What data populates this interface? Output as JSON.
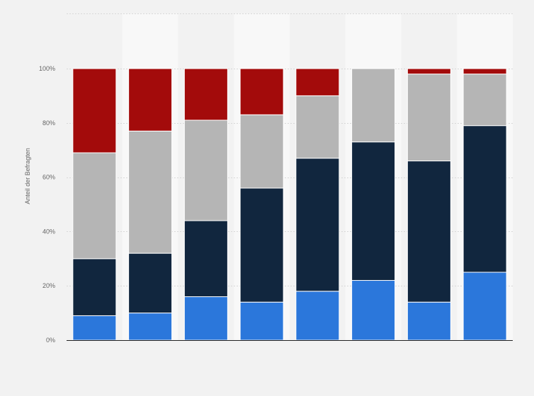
{
  "chart_data": {
    "type": "bar",
    "stacked": true,
    "categories": [
      "",
      "",
      "",
      "",
      "",
      "",
      "",
      ""
    ],
    "ylabel": "Anteil der Befragten",
    "ylim": [
      0,
      100
    ],
    "yticks": [
      0,
      20,
      40,
      60,
      80,
      100
    ],
    "ytick_labels": [
      "0%",
      "20%",
      "40%",
      "60%",
      "80%",
      "100%"
    ],
    "grid": true,
    "legend": "none",
    "series": [
      {
        "color": "#2b77db",
        "values": [
          9,
          10,
          16,
          14,
          18,
          22,
          14,
          25
        ]
      },
      {
        "color": "#11263e",
        "values": [
          21,
          22,
          28,
          42,
          49,
          51,
          52,
          54
        ]
      },
      {
        "color": "#b5b5b5",
        "values": [
          39,
          45,
          37,
          27,
          23,
          27,
          32,
          19
        ]
      },
      {
        "color": "#a30b0b",
        "values": [
          31,
          23,
          19,
          17,
          10,
          0,
          2,
          2
        ]
      }
    ]
  },
  "colors": {
    "background": "#f2f2f2",
    "band_light": "#f8f8f8",
    "grid": "#d8d8d8",
    "axis": "#222222"
  }
}
